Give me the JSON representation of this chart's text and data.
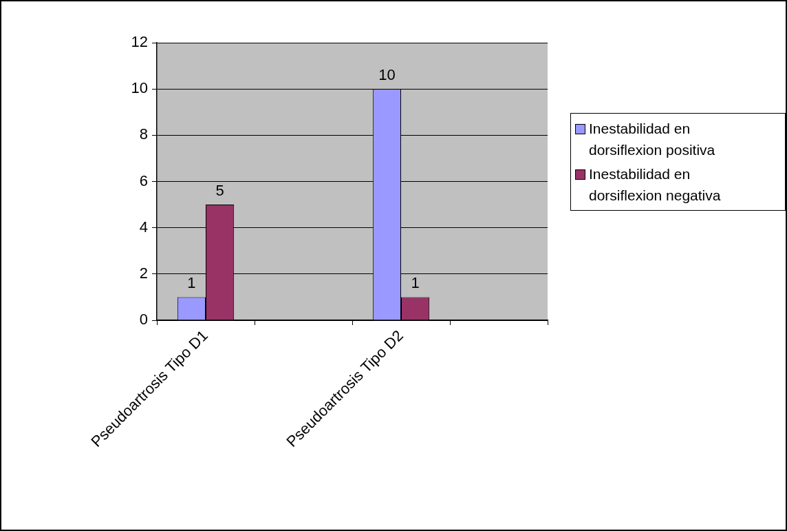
{
  "chart_data": {
    "type": "bar",
    "categories": [
      "Pseudoartrosis Tipo D1",
      null,
      "Pseudoartrosis Tipo D2",
      null
    ],
    "series": [
      {
        "name": "Inestabilidad en dorsiflexion positiva",
        "color": "#9999ff",
        "values": [
          1,
          null,
          10,
          null
        ]
      },
      {
        "name": "Inestabilidad en dorsiflexion negativa",
        "color": "#993366",
        "values": [
          5,
          null,
          1,
          null
        ]
      }
    ],
    "ylim": [
      0,
      12
    ],
    "yticks": [
      0,
      2,
      4,
      6,
      8,
      10,
      12
    ],
    "grid": "y",
    "legend": "right",
    "data_labels": true
  }
}
